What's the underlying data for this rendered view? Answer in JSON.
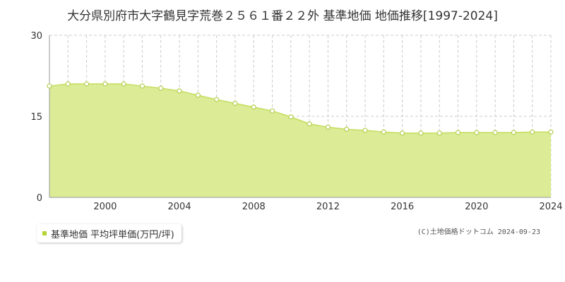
{
  "title": "大分県別府市大字鶴見字荒巻２５６１番２２外 基準地価 地価推移[1997-2024]",
  "legend_label": "基準地価 平均坪単価(万円/坪)",
  "copyright": "(C)土地価格ドットコム 2024-09-23",
  "colors": {
    "fill": "#dbeb96",
    "line": "#c5dd5e",
    "marker_stroke": "#b5cf4d",
    "legend": "#b5d334"
  },
  "chart_data": {
    "type": "area",
    "title": "大分県別府市大字鶴見字荒巻２５６１番２２外 基準地価 地価推移[1997-2024]",
    "xlabel": "",
    "ylabel": "",
    "x": [
      1997,
      1998,
      1999,
      2000,
      2001,
      2002,
      2003,
      2004,
      2005,
      2006,
      2007,
      2008,
      2009,
      2010,
      2011,
      2012,
      2013,
      2014,
      2015,
      2016,
      2017,
      2018,
      2019,
      2020,
      2021,
      2022,
      2023,
      2024
    ],
    "series": [
      {
        "name": "基準地価 平均坪単価(万円/坪)",
        "values": [
          20.6,
          21.0,
          21.0,
          21.0,
          21.0,
          20.6,
          20.2,
          19.7,
          18.9,
          18.1,
          17.4,
          16.7,
          16.0,
          14.9,
          13.6,
          13.0,
          12.6,
          12.4,
          12.1,
          11.9,
          11.9,
          11.9,
          12.0,
          12.0,
          12.0,
          12.0,
          12.1,
          12.1
        ]
      }
    ],
    "xlim": [
      1997,
      2024
    ],
    "ylim": [
      0,
      30
    ],
    "yticks": [
      0,
      15,
      30
    ],
    "xtick_labels": [
      "2000",
      "2004",
      "2008",
      "2012",
      "2016",
      "2020",
      "2024"
    ],
    "xticks": [
      2000,
      2004,
      2008,
      2012,
      2016,
      2020,
      2024
    ],
    "grid": true,
    "legend_position": "bottom-left"
  }
}
